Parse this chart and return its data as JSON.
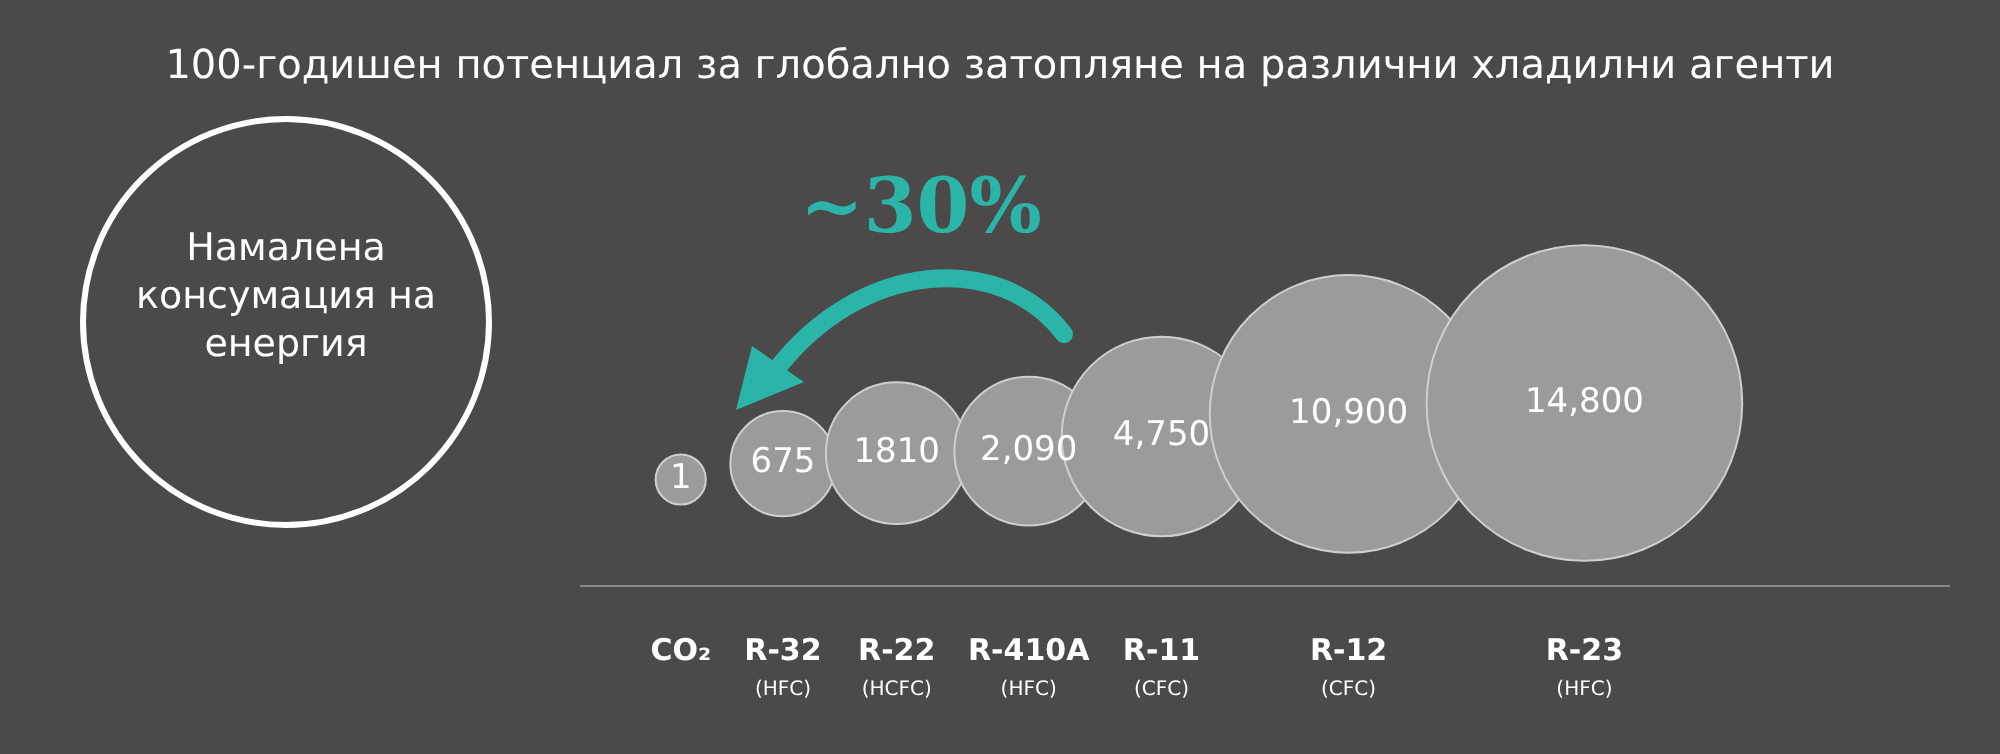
{
  "chart_data": {
    "type": "other",
    "title": "100-годишен потенциал за глобално затопляне на различни хладилни агенти",
    "categories": [
      "CO₂",
      "R-32 (HFC)",
      "R-22 (HCFC)",
      "R-410A (HFC)",
      "R-11 (CFC)",
      "R-12 (CFC)",
      "R-23 (HFC)"
    ],
    "values": [
      1,
      675,
      1810,
      2090,
      4750,
      10900,
      14800
    ],
    "value_labels": [
      "1",
      "675",
      "1810",
      "2,090",
      "4,750",
      "10,900",
      "14,800"
    ],
    "color": "#9c9a9a",
    "annotations": [
      "Намалена консумация на енергия",
      "~30%"
    ]
  }
}
